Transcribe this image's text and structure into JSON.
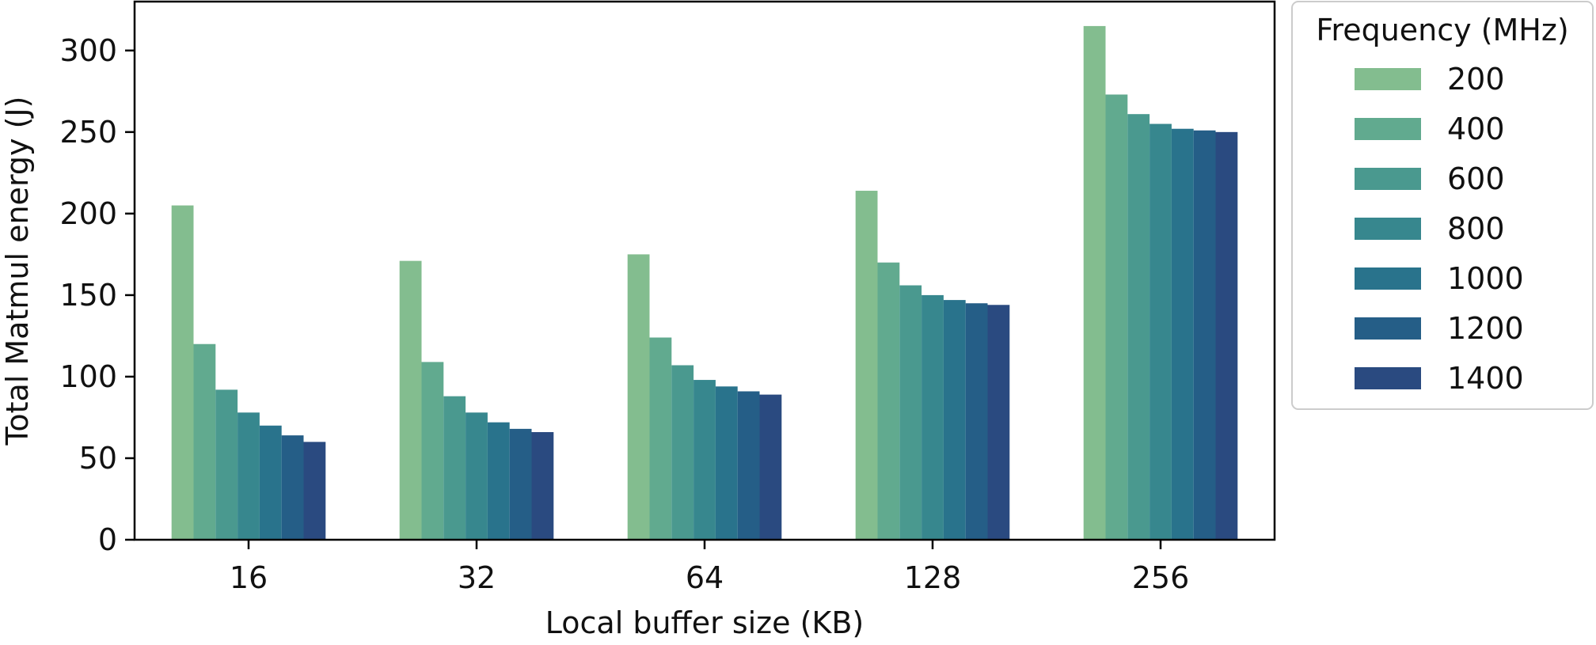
{
  "chart_data": {
    "type": "bar",
    "xlabel": "Local buffer size (KB)",
    "ylabel": "Total Matmul energy (J)",
    "categories": [
      "16",
      "32",
      "64",
      "128",
      "256"
    ],
    "ylim": [
      0,
      330
    ],
    "yticks": [
      0,
      50,
      100,
      150,
      200,
      250,
      300
    ],
    "grid": false,
    "legend": {
      "title": "Frequency (MHz)",
      "placement": "outside-right"
    },
    "series": [
      {
        "name": "200",
        "color": "#83bd8f",
        "values": [
          205,
          171,
          175,
          214,
          315
        ]
      },
      {
        "name": "400",
        "color": "#61aa8f",
        "values": [
          120,
          109,
          124,
          170,
          273
        ]
      },
      {
        "name": "600",
        "color": "#4a998f",
        "values": [
          92,
          88,
          107,
          156,
          261
        ]
      },
      {
        "name": "800",
        "color": "#37878e",
        "values": [
          78,
          78,
          98,
          150,
          255
        ]
      },
      {
        "name": "1000",
        "color": "#29738c",
        "values": [
          70,
          72,
          94,
          147,
          252
        ]
      },
      {
        "name": "1200",
        "color": "#255e87",
        "values": [
          64,
          68,
          91,
          145,
          251
        ]
      },
      {
        "name": "1400",
        "color": "#2a4a80",
        "values": [
          60,
          66,
          89,
          144,
          250
        ]
      }
    ]
  }
}
